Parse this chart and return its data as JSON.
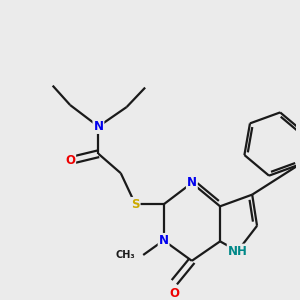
{
  "bg_color": "#ebebeb",
  "bond_color": "#1a1a1a",
  "atom_colors": {
    "N": "#0000ee",
    "O": "#ee0000",
    "S": "#ccaa00",
    "NH": "#008888",
    "C": "#1a1a1a"
  },
  "font_size_atom": 8.5,
  "font_size_label": 7.5
}
